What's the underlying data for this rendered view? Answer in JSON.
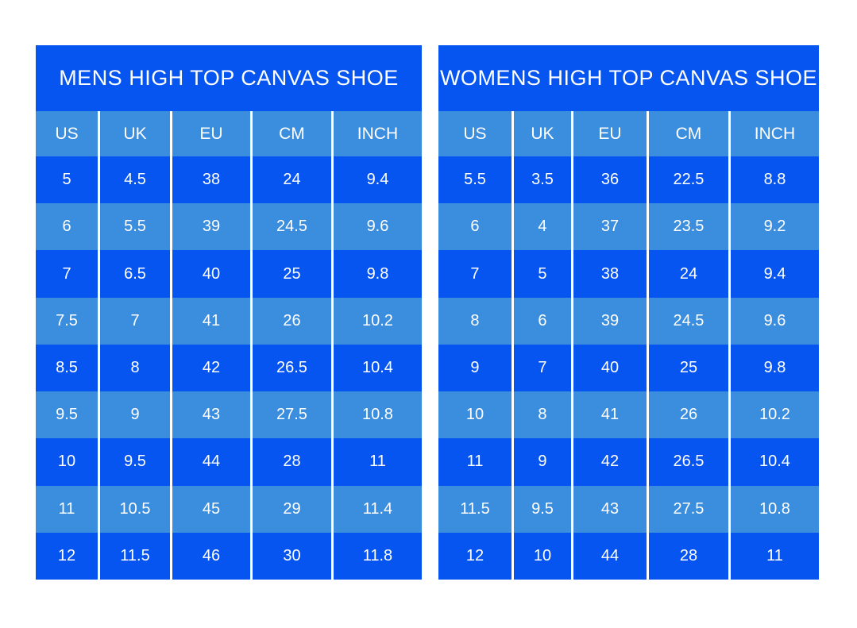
{
  "theme": {
    "dark_blue": "#0755F0",
    "light_blue": "#3B8DDD",
    "separator_white": "#FFFFFF",
    "text_white": "#FFFFFF",
    "page_background": "#FFFFFF"
  },
  "chart_data": [
    {
      "type": "table",
      "title": "MENS HIGH TOP CANVAS SHOE",
      "columns": [
        "US",
        "UK",
        "EU",
        "CM",
        "INCH"
      ],
      "rows": [
        [
          "5",
          "4.5",
          "38",
          "24",
          "9.4"
        ],
        [
          "6",
          "5.5",
          "39",
          "24.5",
          "9.6"
        ],
        [
          "7",
          "6.5",
          "40",
          "25",
          "9.8"
        ],
        [
          "7.5",
          "7",
          "41",
          "26",
          "10.2"
        ],
        [
          "8.5",
          "8",
          "42",
          "26.5",
          "10.4"
        ],
        [
          "9.5",
          "9",
          "43",
          "27.5",
          "10.8"
        ],
        [
          "10",
          "9.5",
          "44",
          "28",
          "11"
        ],
        [
          "11",
          "10.5",
          "45",
          "29",
          "11.4"
        ],
        [
          "12",
          "11.5",
          "46",
          "30",
          "11.8"
        ]
      ],
      "layout_hints": {
        "stripe_pattern": "odd rows dark blue, even rows light blue, header light blue",
        "grid": "white vertical separators between columns, no horizontal lines"
      }
    },
    {
      "type": "table",
      "title": "WOMENS HIGH TOP CANVAS SHOE",
      "columns": [
        "US",
        "UK",
        "EU",
        "CM",
        "INCH"
      ],
      "rows": [
        [
          "5.5",
          "3.5",
          "36",
          "22.5",
          "8.8"
        ],
        [
          "6",
          "4",
          "37",
          "23.5",
          "9.2"
        ],
        [
          "7",
          "5",
          "38",
          "24",
          "9.4"
        ],
        [
          "8",
          "6",
          "39",
          "24.5",
          "9.6"
        ],
        [
          "9",
          "7",
          "40",
          "25",
          "9.8"
        ],
        [
          "10",
          "8",
          "41",
          "26",
          "10.2"
        ],
        [
          "11",
          "9",
          "42",
          "26.5",
          "10.4"
        ],
        [
          "11.5",
          "9.5",
          "43",
          "27.5",
          "10.8"
        ],
        [
          "12",
          "10",
          "44",
          "28",
          "11"
        ]
      ],
      "layout_hints": {
        "stripe_pattern": "odd rows dark blue, even rows light blue, header light blue",
        "grid": "white vertical separators between columns, no horizontal lines"
      }
    }
  ]
}
